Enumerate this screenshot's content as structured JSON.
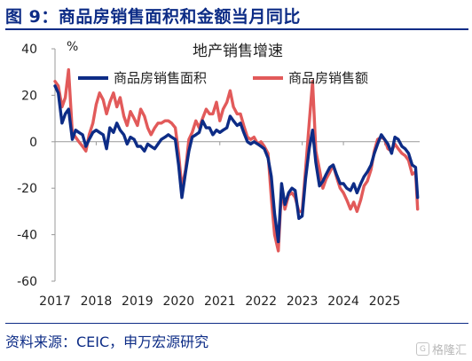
{
  "header": {
    "figure_title": "图 9：商品房销售面积和金额当月同比"
  },
  "footer": {
    "source": "资料来源：CEIC，申万宏源研究"
  },
  "watermark": {
    "text": "格隆汇",
    "logo_glyph": "G"
  },
  "chart_data": {
    "type": "line",
    "title": "地产销售增速",
    "unit_label": "%",
    "xlabel": "",
    "ylabel": "",
    "ylim": [
      -60,
      40
    ],
    "yticks": [
      40,
      20,
      0,
      -20,
      -40,
      -60
    ],
    "xlim": [
      2017.0,
      2025.85
    ],
    "xticks": [
      "2017",
      "2018",
      "2019",
      "2020",
      "2021",
      "2022",
      "2023",
      "2024",
      "2025"
    ],
    "grid": false,
    "legend_position": "top",
    "series": [
      {
        "name": "商品房销售面积",
        "color": "#0d2c86",
        "points": [
          [
            2017.0,
            24
          ],
          [
            2017.08,
            21
          ],
          [
            2017.17,
            8
          ],
          [
            2017.25,
            12
          ],
          [
            2017.33,
            14
          ],
          [
            2017.42,
            1
          ],
          [
            2017.5,
            5
          ],
          [
            2017.58,
            4
          ],
          [
            2017.67,
            3
          ],
          [
            2017.75,
            -2
          ],
          [
            2017.83,
            1
          ],
          [
            2017.92,
            4
          ],
          [
            2018.0,
            5
          ],
          [
            2018.08,
            4
          ],
          [
            2018.17,
            3
          ],
          [
            2018.25,
            -3
          ],
          [
            2018.33,
            6
          ],
          [
            2018.42,
            4
          ],
          [
            2018.5,
            8
          ],
          [
            2018.58,
            5
          ],
          [
            2018.67,
            3
          ],
          [
            2018.75,
            -1
          ],
          [
            2018.83,
            2
          ],
          [
            2018.92,
            1
          ],
          [
            2019.0,
            -2
          ],
          [
            2019.08,
            -2
          ],
          [
            2019.17,
            -4
          ],
          [
            2019.25,
            -1
          ],
          [
            2019.33,
            -2
          ],
          [
            2019.42,
            -3
          ],
          [
            2019.5,
            -1
          ],
          [
            2019.58,
            1
          ],
          [
            2019.67,
            2
          ],
          [
            2019.75,
            3
          ],
          [
            2019.83,
            2
          ],
          [
            2019.92,
            1
          ],
          [
            2020.0,
            -10
          ],
          [
            2020.08,
            -24
          ],
          [
            2020.17,
            -13
          ],
          [
            2020.25,
            -4
          ],
          [
            2020.33,
            2
          ],
          [
            2020.42,
            3
          ],
          [
            2020.5,
            4
          ],
          [
            2020.58,
            9
          ],
          [
            2020.67,
            6
          ],
          [
            2020.75,
            6
          ],
          [
            2020.83,
            3
          ],
          [
            2020.92,
            5
          ],
          [
            2021.0,
            4
          ],
          [
            2021.08,
            5
          ],
          [
            2021.17,
            6
          ],
          [
            2021.25,
            11
          ],
          [
            2021.33,
            9
          ],
          [
            2021.42,
            7
          ],
          [
            2021.5,
            8
          ],
          [
            2021.58,
            4
          ],
          [
            2021.67,
            0
          ],
          [
            2021.75,
            -1
          ],
          [
            2021.83,
            0
          ],
          [
            2021.92,
            -1
          ],
          [
            2022.0,
            -2
          ],
          [
            2022.08,
            -3
          ],
          [
            2022.17,
            -7
          ],
          [
            2022.25,
            -15
          ],
          [
            2022.33,
            -31
          ],
          [
            2022.42,
            -43
          ],
          [
            2022.5,
            -18
          ],
          [
            2022.58,
            -27
          ],
          [
            2022.67,
            -22
          ],
          [
            2022.75,
            -20
          ],
          [
            2022.83,
            -21
          ],
          [
            2022.92,
            -33
          ],
          [
            2023.0,
            -32
          ],
          [
            2023.08,
            -16
          ],
          [
            2023.17,
            -3
          ],
          [
            2023.25,
            5
          ],
          [
            2023.33,
            -9
          ],
          [
            2023.42,
            -19
          ],
          [
            2023.5,
            -17
          ],
          [
            2023.58,
            -14
          ],
          [
            2023.67,
            -11
          ],
          [
            2023.75,
            -10
          ],
          [
            2023.83,
            -14
          ],
          [
            2023.92,
            -18
          ],
          [
            2024.0,
            -18
          ],
          [
            2024.08,
            -20
          ],
          [
            2024.17,
            -21
          ],
          [
            2024.25,
            -18
          ],
          [
            2024.33,
            -22
          ],
          [
            2024.42,
            -18
          ],
          [
            2024.5,
            -15
          ],
          [
            2024.58,
            -13
          ],
          [
            2024.67,
            -10
          ],
          [
            2024.75,
            -5
          ],
          [
            2024.83,
            -1
          ],
          [
            2024.92,
            3
          ],
          [
            2025.0,
            1
          ],
          [
            2025.08,
            -1
          ],
          [
            2025.17,
            -5
          ],
          [
            2025.25,
            2
          ],
          [
            2025.33,
            1
          ],
          [
            2025.42,
            -2
          ],
          [
            2025.5,
            -3
          ],
          [
            2025.58,
            -5
          ],
          [
            2025.67,
            -10
          ],
          [
            2025.75,
            -11
          ],
          [
            2025.8,
            -24
          ]
        ]
      },
      {
        "name": "商品房销售额",
        "color": "#e25a5a",
        "points": [
          [
            2017.0,
            26
          ],
          [
            2017.08,
            24
          ],
          [
            2017.17,
            15
          ],
          [
            2017.25,
            19
          ],
          [
            2017.33,
            31
          ],
          [
            2017.42,
            4
          ],
          [
            2017.5,
            2
          ],
          [
            2017.58,
            0
          ],
          [
            2017.67,
            -2
          ],
          [
            2017.75,
            -4
          ],
          [
            2017.83,
            3
          ],
          [
            2017.92,
            8
          ],
          [
            2018.0,
            16
          ],
          [
            2018.08,
            21
          ],
          [
            2018.17,
            18
          ],
          [
            2018.25,
            12
          ],
          [
            2018.33,
            17
          ],
          [
            2018.42,
            21
          ],
          [
            2018.5,
            15
          ],
          [
            2018.58,
            19
          ],
          [
            2018.67,
            11
          ],
          [
            2018.75,
            7
          ],
          [
            2018.83,
            13
          ],
          [
            2018.92,
            10
          ],
          [
            2019.0,
            7
          ],
          [
            2019.08,
            14
          ],
          [
            2019.17,
            11
          ],
          [
            2019.25,
            6
          ],
          [
            2019.33,
            3
          ],
          [
            2019.42,
            6
          ],
          [
            2019.5,
            8
          ],
          [
            2019.58,
            8
          ],
          [
            2019.67,
            9
          ],
          [
            2019.75,
            9
          ],
          [
            2019.83,
            8
          ],
          [
            2019.92,
            6
          ],
          [
            2020.0,
            -5
          ],
          [
            2020.08,
            -20
          ],
          [
            2020.17,
            -12
          ],
          [
            2020.25,
            1
          ],
          [
            2020.33,
            4
          ],
          [
            2020.42,
            9
          ],
          [
            2020.5,
            6
          ],
          [
            2020.58,
            10
          ],
          [
            2020.67,
            14
          ],
          [
            2020.75,
            12
          ],
          [
            2020.83,
            12
          ],
          [
            2020.92,
            17
          ],
          [
            2021.0,
            9
          ],
          [
            2021.08,
            14
          ],
          [
            2021.17,
            17
          ],
          [
            2021.25,
            22
          ],
          [
            2021.33,
            15
          ],
          [
            2021.42,
            12
          ],
          [
            2021.5,
            12
          ],
          [
            2021.58,
            7
          ],
          [
            2021.67,
            2
          ],
          [
            2021.75,
            1
          ],
          [
            2021.83,
            2
          ],
          [
            2021.92,
            -1
          ],
          [
            2022.0,
            0
          ],
          [
            2022.08,
            -2
          ],
          [
            2022.17,
            -5
          ],
          [
            2022.25,
            -24
          ],
          [
            2022.33,
            -40
          ],
          [
            2022.42,
            -47
          ],
          [
            2022.5,
            -20
          ],
          [
            2022.58,
            -29
          ],
          [
            2022.67,
            -23
          ],
          [
            2022.75,
            -22
          ],
          [
            2022.83,
            -24
          ],
          [
            2022.92,
            -30
          ],
          [
            2023.0,
            -30
          ],
          [
            2023.08,
            -12
          ],
          [
            2023.17,
            8
          ],
          [
            2023.25,
            26
          ],
          [
            2023.33,
            -4
          ],
          [
            2023.42,
            -12
          ],
          [
            2023.5,
            -20
          ],
          [
            2023.58,
            -16
          ],
          [
            2023.67,
            -13
          ],
          [
            2023.75,
            -10
          ],
          [
            2023.83,
            -15
          ],
          [
            2023.92,
            -20
          ],
          [
            2024.0,
            -22
          ],
          [
            2024.08,
            -25
          ],
          [
            2024.17,
            -29
          ],
          [
            2024.25,
            -26
          ],
          [
            2024.33,
            -30
          ],
          [
            2024.42,
            -25
          ],
          [
            2024.5,
            -19
          ],
          [
            2024.58,
            -17
          ],
          [
            2024.67,
            -12
          ],
          [
            2024.75,
            -4
          ],
          [
            2024.83,
            1
          ],
          [
            2024.92,
            2
          ],
          [
            2025.0,
            1
          ],
          [
            2025.08,
            -3
          ],
          [
            2025.17,
            -4
          ],
          [
            2025.25,
            -1
          ],
          [
            2025.33,
            -3
          ],
          [
            2025.42,
            -5
          ],
          [
            2025.5,
            -6
          ],
          [
            2025.58,
            -8
          ],
          [
            2025.67,
            -14
          ],
          [
            2025.75,
            -13
          ],
          [
            2025.8,
            -29
          ]
        ]
      }
    ]
  }
}
